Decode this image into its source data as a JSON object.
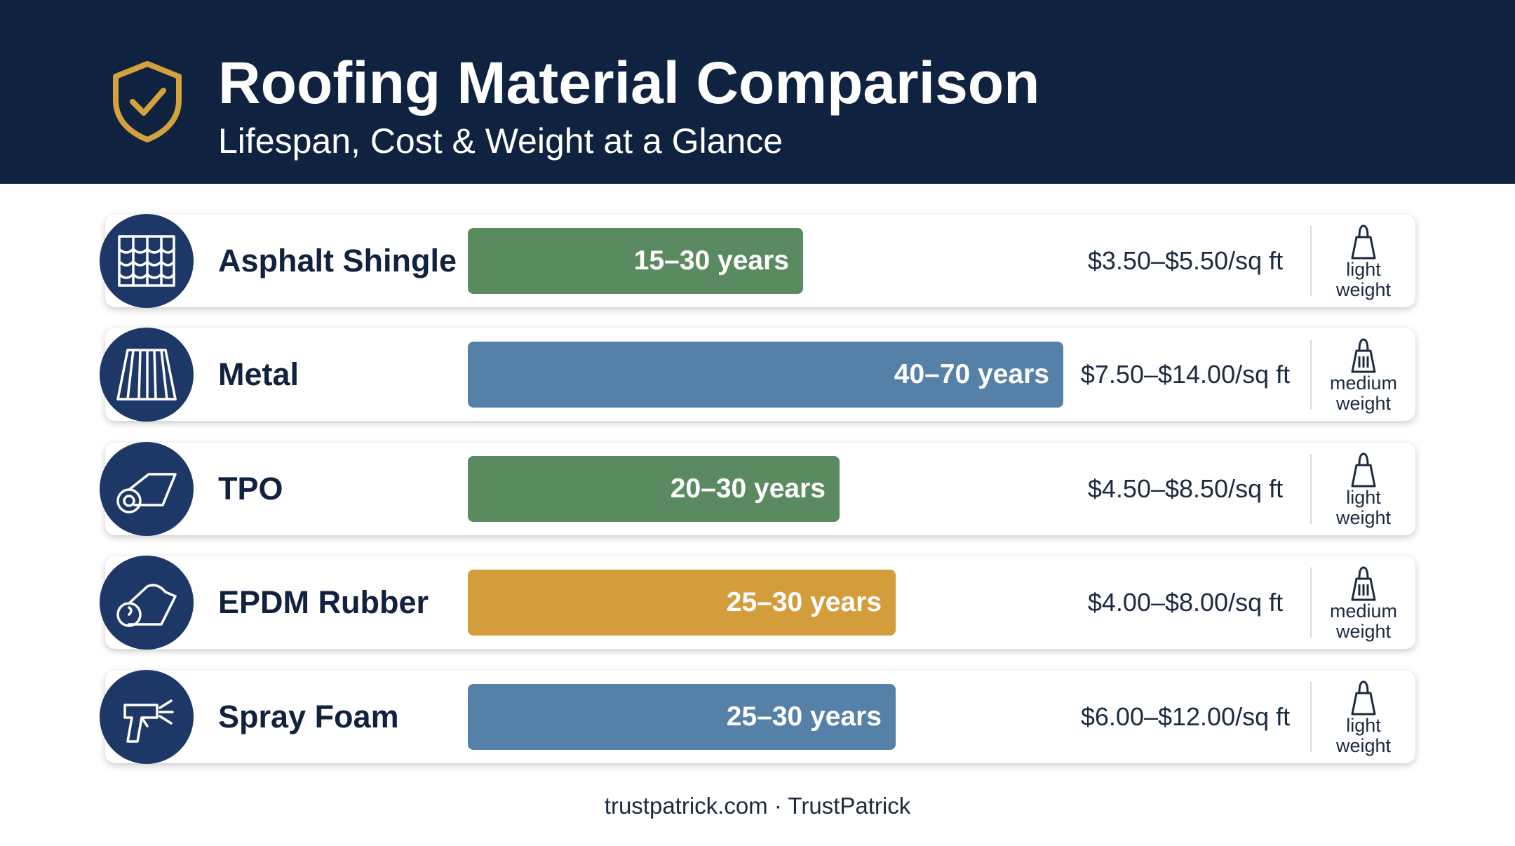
{
  "header": {
    "title": "Roofing Material Comparison",
    "subtitle": "Lifespan, Cost & Weight at a Glance"
  },
  "rows": [
    {
      "name": "Asphalt Shingle",
      "lifespan": "15–30 years",
      "color": "#5a8a60",
      "cost": "$3.50–$5.50/sq ft",
      "weight": "light weight"
    },
    {
      "name": "Metal",
      "lifespan": "40–70 years",
      "color": "#5580a8",
      "cost": "$7.50–$14.00/sq ft",
      "weight": "medium weight"
    },
    {
      "name": "TPO",
      "lifespan": "20–30 years",
      "color": "#5a8a60",
      "cost": "$4.50–$8.50/sq ft",
      "weight": "light weight"
    },
    {
      "name": "EPDM Rubber",
      "lifespan": "25–30 years",
      "color": "#d49d3c",
      "cost": "$4.00–$8.00/sq ft",
      "weight": "medium weight"
    },
    {
      "name": "Spray Foam",
      "lifespan": "25–30 years",
      "color": "#5580a8",
      "cost": "$6.00–$12.00/sq ft",
      "weight": "light weight"
    }
  ],
  "footer": "trustpatrick.com · TrustPatrick"
}
